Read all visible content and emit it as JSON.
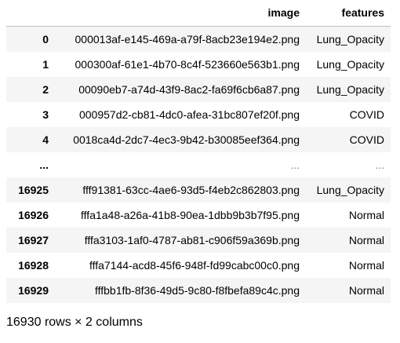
{
  "table": {
    "columns": [
      "",
      "image",
      "features"
    ],
    "rows": [
      {
        "index": "0",
        "image": "000013af-e145-469a-a79f-8acb23e194e2.png",
        "features": "Lung_Opacity"
      },
      {
        "index": "1",
        "image": "000300af-61e1-4b70-8c4f-523660e563b1.png",
        "features": "Lung_Opacity"
      },
      {
        "index": "2",
        "image": "00090eb7-a74d-43f9-8ac2-fa69f6cb6a87.png",
        "features": "Lung_Opacity"
      },
      {
        "index": "3",
        "image": "000957d2-cb81-4dc0-afea-31bc807ef20f.png",
        "features": "COVID"
      },
      {
        "index": "4",
        "image": "0018ca4d-2dc7-4ec3-9b42-b30085eef364.png",
        "features": "COVID"
      },
      {
        "index": "...",
        "image": "...",
        "features": "..."
      },
      {
        "index": "16925",
        "image": "fff91381-63cc-4ae6-93d5-f4eb2c862803.png",
        "features": "Lung_Opacity"
      },
      {
        "index": "16926",
        "image": "fffa1a48-a26a-41b8-90ea-1dbb9b3b7f95.png",
        "features": "Normal"
      },
      {
        "index": "16927",
        "image": "fffa3103-1af0-4787-ab81-c906f59a369b.png",
        "features": "Normal"
      },
      {
        "index": "16928",
        "image": "fffa7144-acd8-45f6-948f-fd99cabc00c0.png",
        "features": "Normal"
      },
      {
        "index": "16929",
        "image": "fffbb1fb-8f36-49d5-9c80-f8fbefa89c4c.png",
        "features": "Normal"
      }
    ]
  },
  "shape": "16930 rows × 2 columns"
}
